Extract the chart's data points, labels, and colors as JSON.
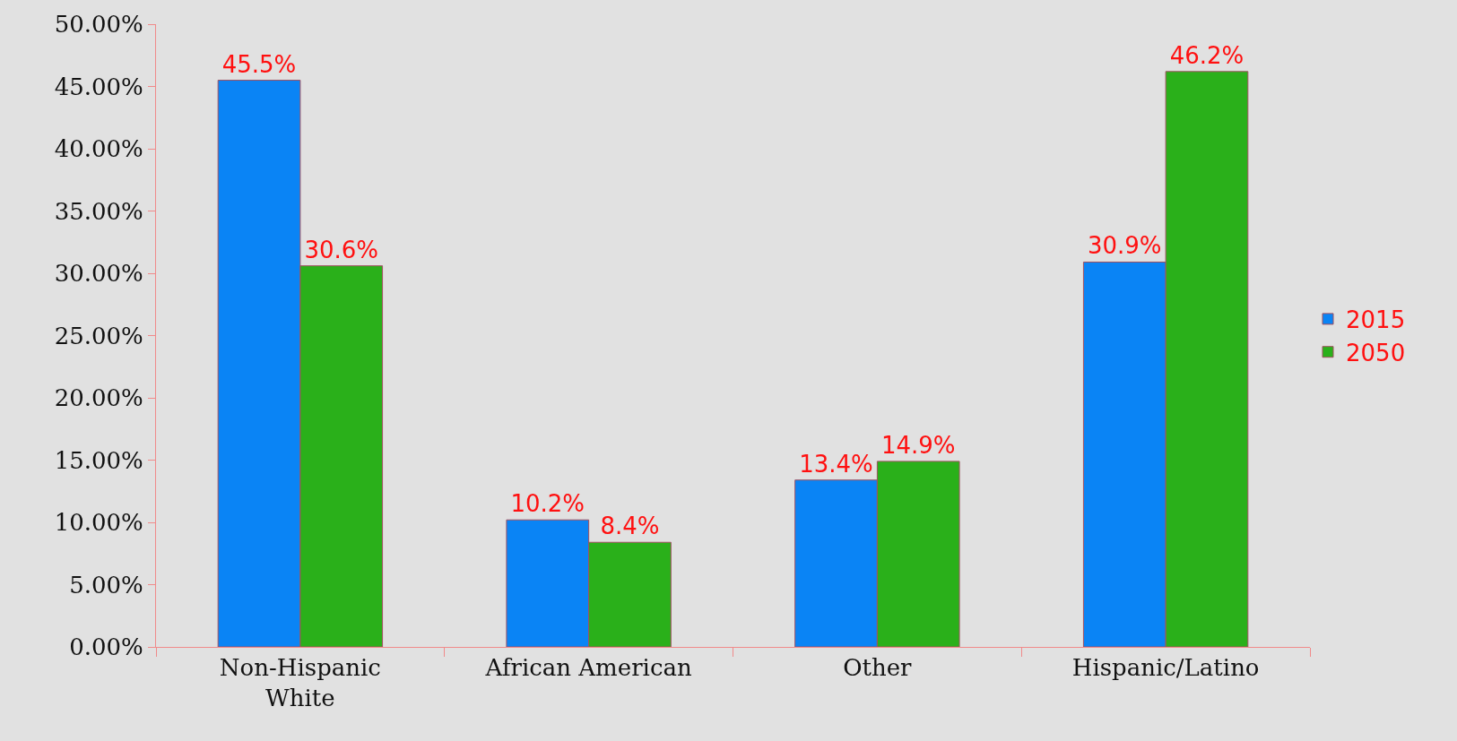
{
  "chart_data": {
    "type": "bar",
    "categories": [
      "Non-Hispanic White",
      "African American",
      "Other",
      "Hispanic/Latino"
    ],
    "series": [
      {
        "name": "2015",
        "color": "#0a84f5",
        "values": [
          45.5,
          10.2,
          13.4,
          30.9
        ],
        "value_labels": [
          "45.5%",
          "10.2%",
          "13.4%",
          "30.9%"
        ]
      },
      {
        "name": "2050",
        "color": "#2ab01a",
        "values": [
          30.6,
          8.4,
          14.9,
          46.2
        ],
        "value_labels": [
          "30.6%",
          "8.4%",
          "14.9%",
          "46.2%"
        ]
      }
    ],
    "ylim": [
      0,
      50
    ],
    "yticks": [
      {
        "value": 0,
        "label": "0.00%"
      },
      {
        "value": 5,
        "label": "5.00%"
      },
      {
        "value": 10,
        "label": "10.00%"
      },
      {
        "value": 15,
        "label": "15.00%"
      },
      {
        "value": 20,
        "label": "20.00%"
      },
      {
        "value": 25,
        "label": "25.00%"
      },
      {
        "value": 30,
        "label": "30.00%"
      },
      {
        "value": 35,
        "label": "35.00%"
      },
      {
        "value": 40,
        "label": "40.00%"
      },
      {
        "value": 45,
        "label": "45.00%"
      },
      {
        "value": 50,
        "label": "50.00%"
      }
    ],
    "grid": false,
    "legend": "right"
  }
}
